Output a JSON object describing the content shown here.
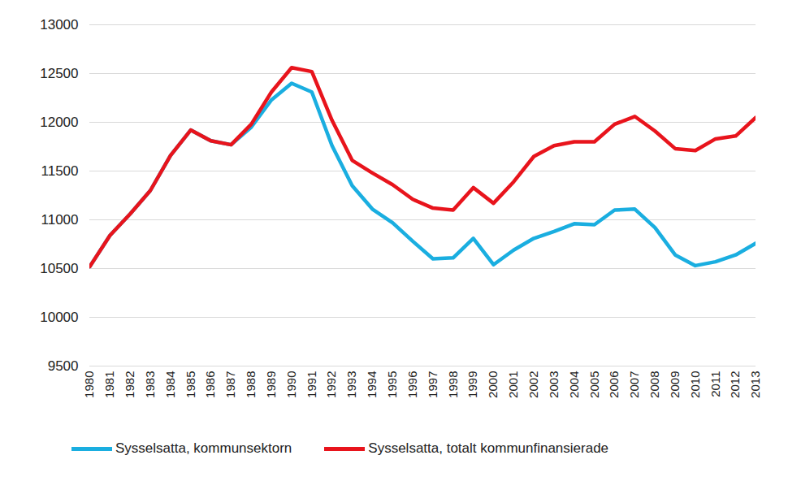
{
  "chart_data": {
    "type": "line",
    "x": [
      1980,
      1981,
      1982,
      1983,
      1984,
      1985,
      1986,
      1987,
      1988,
      1989,
      1990,
      1991,
      1992,
      1993,
      1994,
      1995,
      1996,
      1997,
      1998,
      1999,
      2000,
      2001,
      2002,
      2003,
      2004,
      2005,
      2006,
      2007,
      2008,
      2009,
      2010,
      2011,
      2012,
      2013
    ],
    "xlim": [
      1980,
      2013
    ],
    "xticks": [
      1980,
      1981,
      1982,
      1983,
      1984,
      1985,
      1986,
      1987,
      1988,
      1989,
      1990,
      1991,
      1992,
      1993,
      1994,
      1995,
      1996,
      1997,
      1998,
      1999,
      2000,
      2001,
      2002,
      2003,
      2004,
      2005,
      2006,
      2007,
      2008,
      2009,
      2010,
      2011,
      2012,
      2013
    ],
    "ylim": [
      9500,
      13000
    ],
    "yticks": [
      9500,
      10000,
      10500,
      11000,
      11500,
      12000,
      12500,
      13000
    ],
    "grid": true,
    "legend": "bottom",
    "series": [
      {
        "name": "Sysselsatta, kommunsektorn",
        "color": "#1aaee0",
        "values": [
          10520,
          10840,
          11060,
          11300,
          11660,
          11920,
          11810,
          11770,
          11950,
          12230,
          12400,
          12310,
          11760,
          11350,
          11110,
          10970,
          10780,
          10600,
          10610,
          10810,
          10540,
          10690,
          10810,
          10880,
          10960,
          10950,
          11100,
          11110,
          10920,
          10640,
          10530,
          10570,
          10640,
          10760
        ]
      },
      {
        "name": "Sysselsatta, totalt kommunfinansierade",
        "color": "#e8141c",
        "values": [
          10520,
          10840,
          11060,
          11300,
          11660,
          11920,
          11810,
          11770,
          11980,
          12310,
          12560,
          12520,
          12020,
          11610,
          11480,
          11360,
          11210,
          11120,
          11100,
          11330,
          11170,
          11390,
          11650,
          11760,
          11800,
          11800,
          11980,
          12060,
          11910,
          11730,
          11710,
          11830,
          11860,
          12050
        ]
      }
    ]
  }
}
